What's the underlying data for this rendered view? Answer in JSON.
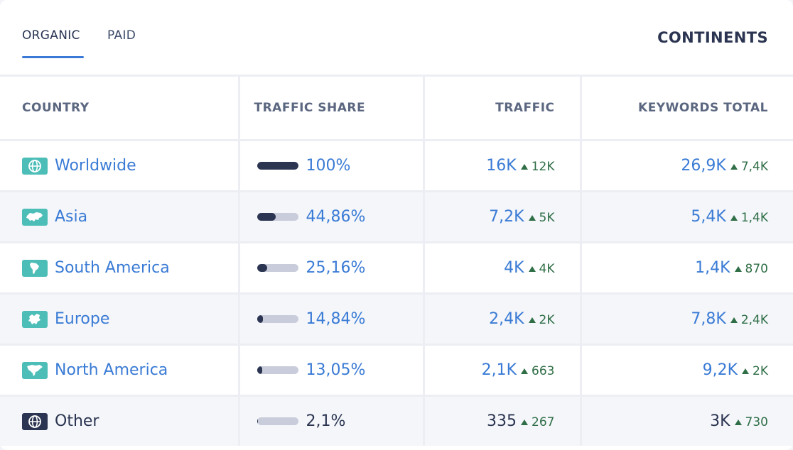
{
  "tabs": [
    {
      "label": "ORGANIC",
      "active": true
    },
    {
      "label": "PAID",
      "active": false
    }
  ],
  "title": "CONTINENTS",
  "columns": [
    "COUNTRY",
    "TRAFFIC SHARE",
    "TRAFFIC",
    "KEYWORDS TOTAL"
  ],
  "rows": [
    {
      "country": "Worldwide",
      "icon": "globe-icon",
      "share": "100%",
      "share_value": 1.0,
      "traffic": "16K",
      "traffic_delta": "12K",
      "keywords": "26,9K",
      "keywords_delta": "7,4K",
      "link": true
    },
    {
      "country": "Asia",
      "icon": "asia-map-icon",
      "share": "44,86%",
      "share_value": 0.4486,
      "traffic": "7,2K",
      "traffic_delta": "5K",
      "keywords": "5,4K",
      "keywords_delta": "1,4K",
      "link": true
    },
    {
      "country": "South America",
      "icon": "south-america-map-icon",
      "share": "25,16%",
      "share_value": 0.2516,
      "traffic": "4K",
      "traffic_delta": "4K",
      "keywords": "1,4K",
      "keywords_delta": "870",
      "link": true
    },
    {
      "country": "Europe",
      "icon": "europe-map-icon",
      "share": "14,84%",
      "share_value": 0.1484,
      "traffic": "2,4K",
      "traffic_delta": "2K",
      "keywords": "7,8K",
      "keywords_delta": "2,4K",
      "link": true
    },
    {
      "country": "North America",
      "icon": "north-america-map-icon",
      "share": "13,05%",
      "share_value": 0.1305,
      "traffic": "2,1K",
      "traffic_delta": "663",
      "keywords": "9,2K",
      "keywords_delta": "2K",
      "link": true
    },
    {
      "country": "Other",
      "icon": "globe-icon",
      "share": "2,1%",
      "share_value": 0.021,
      "traffic": "335",
      "traffic_delta": "267",
      "keywords": "3K",
      "keywords_delta": "730",
      "link": false
    }
  ],
  "colors": {
    "accent": "#3a7bd5",
    "dark": "#2b3551",
    "flag": "#4dbdb7",
    "positive": "#2f6e46"
  }
}
